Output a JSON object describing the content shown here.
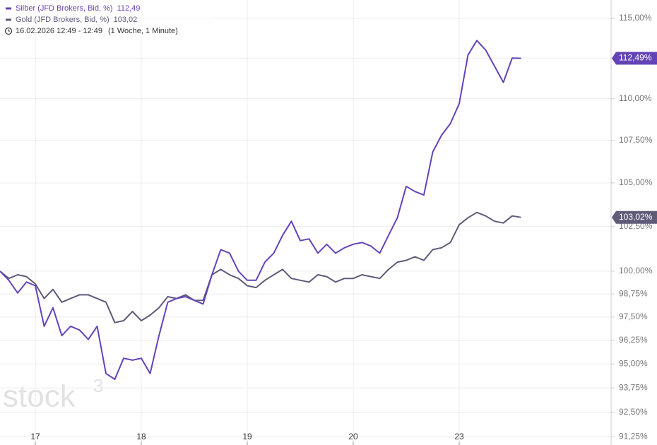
{
  "chart_data": {
    "type": "line",
    "log_scale": true,
    "grid": true,
    "date_range": "16.02.2026 12:49 - 12:49",
    "period": "(1 Woche, 1 Minute)",
    "watermark": {
      "text": "stock",
      "sup": "3"
    },
    "categories": [
      null,
      null,
      null,
      null,
      "17",
      null,
      null,
      null,
      null,
      null,
      null,
      null,
      null,
      null,
      null,
      null,
      "18",
      null,
      null,
      null,
      null,
      null,
      null,
      null,
      null,
      null,
      null,
      null,
      "19",
      null,
      null,
      null,
      null,
      null,
      null,
      null,
      null,
      null,
      null,
      null,
      "20",
      null,
      null,
      null,
      null,
      null,
      null,
      null,
      null,
      null,
      null,
      null,
      "23",
      null,
      null,
      null,
      null,
      null,
      null,
      null
    ],
    "series": [
      {
        "name": "Silber (JFD Brokers, Bid, %)",
        "legend_value": "112,49",
        "badge_label": "112,49%",
        "color": "#6443b8",
        "values": [
          100.0,
          99.5,
          98.8,
          99.4,
          99.2,
          97.0,
          98.0,
          96.5,
          97.0,
          96.8,
          96.3,
          97.0,
          94.5,
          94.2,
          95.3,
          95.2,
          95.3,
          94.5,
          96.5,
          98.3,
          98.5,
          98.6,
          98.4,
          98.2,
          99.8,
          101.2,
          101.0,
          100.0,
          99.5,
          99.5,
          100.5,
          101.0,
          102.0,
          102.8,
          101.7,
          101.8,
          101.0,
          101.5,
          101.0,
          101.3,
          101.5,
          101.6,
          101.4,
          101.0,
          102.0,
          103.0,
          104.8,
          104.5,
          104.3,
          106.8,
          107.8,
          108.5,
          109.7,
          112.7,
          113.6,
          113.0,
          112.0,
          111.0,
          112.5,
          112.49
        ]
      },
      {
        "name": "Gold (JFD Brokers, Bid, %)",
        "legend_value": "103,02",
        "badge_label": "103,02%",
        "color": "#5f5b78",
        "values": [
          100.0,
          99.6,
          99.8,
          99.7,
          99.3,
          98.5,
          99.0,
          98.3,
          98.5,
          98.7,
          98.7,
          98.5,
          98.3,
          97.2,
          97.3,
          97.8,
          97.3,
          97.6,
          98.0,
          98.6,
          98.5,
          98.7,
          98.4,
          98.4,
          99.8,
          100.1,
          99.8,
          99.6,
          99.2,
          99.1,
          99.5,
          99.8,
          100.1,
          99.6,
          99.5,
          99.4,
          99.8,
          99.7,
          99.4,
          99.6,
          99.6,
          99.8,
          99.7,
          99.6,
          100.1,
          100.5,
          100.6,
          100.8,
          100.6,
          101.2,
          101.3,
          101.6,
          102.6,
          103.0,
          103.3,
          103.1,
          102.8,
          102.7,
          103.1,
          103.02
        ]
      }
    ],
    "ylim": [
      90.84,
      116.17
    ],
    "yticks": [
      {
        "value": 91.25,
        "label": "91,25%"
      },
      {
        "value": 92.5,
        "label": "92,50%"
      },
      {
        "value": 93.75,
        "label": "93,75%"
      },
      {
        "value": 95,
        "label": "95,00%"
      },
      {
        "value": 96.25,
        "label": "96,25%"
      },
      {
        "value": 97.5,
        "label": "97,50%"
      },
      {
        "value": 98.75,
        "label": "98,75%"
      },
      {
        "value": 100,
        "label": "100,00%"
      },
      {
        "value": 102.5,
        "label": "102,50%"
      },
      {
        "value": 105,
        "label": "105,00%"
      },
      {
        "value": 107.5,
        "label": "107,50%"
      },
      {
        "value": 110,
        "label": "110,00%"
      },
      {
        "value": 112.5,
        "label": "112,50%"
      },
      {
        "value": 115,
        "label": "115,00%"
      }
    ]
  }
}
